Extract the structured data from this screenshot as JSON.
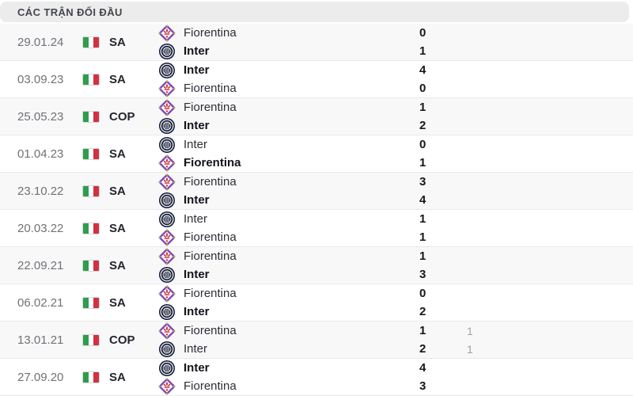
{
  "header": {
    "title": "CÁC TRẬN ĐỐI ĐẦU"
  },
  "colors": {
    "header_bg": "#ececec",
    "row_alt_bg": "#f8f8f9",
    "divider": "#e9e9eb",
    "date_text": "#6f7276",
    "team_text": "#2c2f36",
    "team_text_bold": "#12141a",
    "secondary_score_text": "#a3a09a",
    "flag_green": "#2f9d4f",
    "flag_red": "#d13240",
    "fiorentina_purple": "#7a4db3",
    "fiorentina_red": "#cc2233",
    "inter_navy": "#0c173f"
  },
  "icons": {
    "italy_flag": "italy-flag-icon",
    "fiorentina": "fiorentina-logo-icon",
    "inter": "inter-logo-icon"
  },
  "matches": [
    {
      "date": "29.01.24",
      "competition": "SA",
      "lines": [
        {
          "team": "Fiorentina",
          "logo": "fiorentina",
          "score": "0",
          "bold": false,
          "score2": ""
        },
        {
          "team": "Inter",
          "logo": "inter",
          "score": "1",
          "bold": true,
          "score2": ""
        }
      ]
    },
    {
      "date": "03.09.23",
      "competition": "SA",
      "lines": [
        {
          "team": "Inter",
          "logo": "inter",
          "score": "4",
          "bold": true,
          "score2": ""
        },
        {
          "team": "Fiorentina",
          "logo": "fiorentina",
          "score": "0",
          "bold": false,
          "score2": ""
        }
      ]
    },
    {
      "date": "25.05.23",
      "competition": "COP",
      "lines": [
        {
          "team": "Fiorentina",
          "logo": "fiorentina",
          "score": "1",
          "bold": false,
          "score2": ""
        },
        {
          "team": "Inter",
          "logo": "inter",
          "score": "2",
          "bold": true,
          "score2": ""
        }
      ]
    },
    {
      "date": "01.04.23",
      "competition": "SA",
      "lines": [
        {
          "team": "Inter",
          "logo": "inter",
          "score": "0",
          "bold": false,
          "score2": ""
        },
        {
          "team": "Fiorentina",
          "logo": "fiorentina",
          "score": "1",
          "bold": true,
          "score2": ""
        }
      ]
    },
    {
      "date": "23.10.22",
      "competition": "SA",
      "lines": [
        {
          "team": "Fiorentina",
          "logo": "fiorentina",
          "score": "3",
          "bold": false,
          "score2": ""
        },
        {
          "team": "Inter",
          "logo": "inter",
          "score": "4",
          "bold": true,
          "score2": ""
        }
      ]
    },
    {
      "date": "20.03.22",
      "competition": "SA",
      "lines": [
        {
          "team": "Inter",
          "logo": "inter",
          "score": "1",
          "bold": false,
          "score2": ""
        },
        {
          "team": "Fiorentina",
          "logo": "fiorentina",
          "score": "1",
          "bold": false,
          "score2": ""
        }
      ]
    },
    {
      "date": "22.09.21",
      "competition": "SA",
      "lines": [
        {
          "team": "Fiorentina",
          "logo": "fiorentina",
          "score": "1",
          "bold": false,
          "score2": ""
        },
        {
          "team": "Inter",
          "logo": "inter",
          "score": "3",
          "bold": true,
          "score2": ""
        }
      ]
    },
    {
      "date": "06.02.21",
      "competition": "SA",
      "lines": [
        {
          "team": "Fiorentina",
          "logo": "fiorentina",
          "score": "0",
          "bold": false,
          "score2": ""
        },
        {
          "team": "Inter",
          "logo": "inter",
          "score": "2",
          "bold": true,
          "score2": ""
        }
      ]
    },
    {
      "date": "13.01.21",
      "competition": "COP",
      "lines": [
        {
          "team": "Fiorentina",
          "logo": "fiorentina",
          "score": "1",
          "bold": false,
          "score2": "1"
        },
        {
          "team": "Inter",
          "logo": "inter",
          "score": "2",
          "bold": false,
          "score2": "1"
        }
      ]
    },
    {
      "date": "27.09.20",
      "competition": "SA",
      "lines": [
        {
          "team": "Inter",
          "logo": "inter",
          "score": "4",
          "bold": true,
          "score2": ""
        },
        {
          "team": "Fiorentina",
          "logo": "fiorentina",
          "score": "3",
          "bold": false,
          "score2": ""
        }
      ]
    }
  ]
}
